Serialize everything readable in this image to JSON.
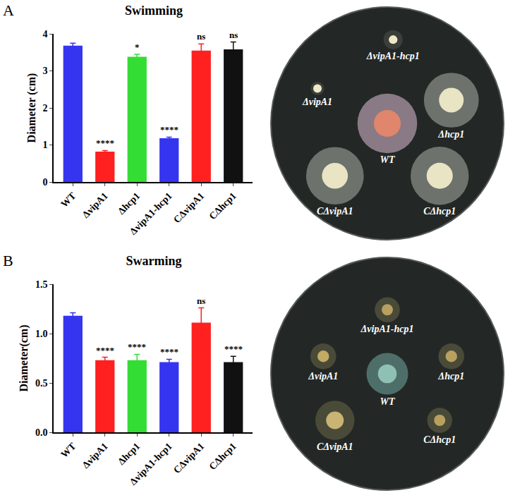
{
  "chart_data": [
    {
      "panel": "A",
      "type": "bar",
      "title": "Swimming",
      "y_label": "Diameter (cm)",
      "categories": [
        "WT",
        "ΔvipA1",
        "Δhcp1",
        "ΔvipA1-hcp1",
        "CΔvipA1",
        "CΔhcp1"
      ],
      "values": [
        3.68,
        0.82,
        3.38,
        1.18,
        3.55,
        3.58
      ],
      "errors": [
        0.07,
        0.03,
        0.07,
        0.03,
        0.18,
        0.2
      ],
      "colors": [
        "#3535f0",
        "#ff2020",
        "#33dd33",
        "#3535f0",
        "#ff2020",
        "#111111"
      ],
      "annotations": [
        null,
        "****",
        "*",
        "****",
        "ns",
        "ns"
      ],
      "ylim": [
        0,
        4
      ],
      "yticks": [
        0,
        1,
        2,
        3,
        4
      ],
      "grid": false
    },
    {
      "panel": "B",
      "type": "bar",
      "title": "Swarming",
      "y_label": "Diameter(cm)",
      "categories": [
        "WT",
        "ΔvipA1",
        "Δhcp1",
        "ΔvipA1-hcp1",
        "CΔvipA1",
        "CΔhcp1"
      ],
      "values": [
        1.18,
        0.73,
        0.73,
        0.71,
        1.11,
        0.71
      ],
      "errors": [
        0.03,
        0.03,
        0.06,
        0.03,
        0.15,
        0.06
      ],
      "colors": [
        "#3535f0",
        "#ff2020",
        "#33dd33",
        "#3535f0",
        "#ff2020",
        "#111111"
      ],
      "annotations": [
        null,
        "****",
        "****",
        "****",
        "ns",
        "****"
      ],
      "ylim": [
        0,
        1.5
      ],
      "yticks": [
        {
          "value": 0,
          "label": "0.0"
        },
        {
          "value": 0.5,
          "label": "0.5"
        },
        {
          "value": 1,
          "label": "1.0"
        },
        {
          "value": 1.5,
          "label": "1.5"
        }
      ],
      "grid": false
    }
  ]
}
